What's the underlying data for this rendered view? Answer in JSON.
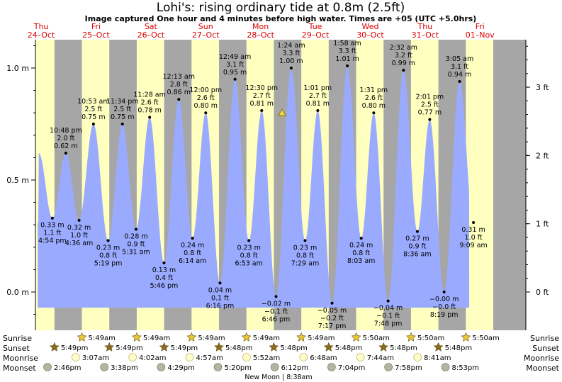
{
  "header": {
    "title": "Lohi's: rising  ordinary tide at 0.8m (2.5ft)",
    "subtitle": "Image captured One hour and 4 minutes before high water. Times are +05 (UTC +5.0hrs)"
  },
  "days": [
    {
      "name": "Thu",
      "date": "24–Oct"
    },
    {
      "name": "Fri",
      "date": "25–Oct"
    },
    {
      "name": "Sat",
      "date": "26–Oct"
    },
    {
      "name": "Sun",
      "date": "27–Oct"
    },
    {
      "name": "Mon",
      "date": "28–Oct"
    },
    {
      "name": "Tue",
      "date": "29–Oct"
    },
    {
      "name": "Wed",
      "date": "30–Oct"
    },
    {
      "name": "Thu",
      "date": "31–Oct"
    },
    {
      "name": "Fri",
      "date": "01–Nov"
    }
  ],
  "rows": {
    "sunrise": "Sunrise",
    "sunset": "Sunset",
    "moonrise": "Moonrise",
    "moonset": "Moonset"
  },
  "sun_moon": {
    "sunrise": [
      "5:49am",
      "5:49am",
      "5:49am",
      "5:49am",
      "5:49am",
      "5:50am",
      "5:50am",
      "5:50am"
    ],
    "sunset": [
      "5:49pm",
      "5:49pm",
      "5:49pm",
      "5:48pm",
      "5:48pm",
      "5:48pm",
      "5:48pm",
      "5:48pm"
    ],
    "moonrise": [
      "3:07am",
      "4:02am",
      "4:57am",
      "5:52am",
      "6:48am",
      "7:44am",
      "8:41am"
    ],
    "moonset": [
      "2:46pm",
      "3:38pm",
      "4:29pm",
      "5:20pm",
      "6:12pm",
      "7:04pm",
      "7:58pm",
      "8:53pm"
    ],
    "new_moon": "New Moon | 8:38am"
  },
  "colors": {
    "night": "#a6a6a6",
    "day": "#ffffc0",
    "tide": "#9aaaff",
    "day_label": "#e00000",
    "sun_icon": "#e8c832",
    "sunset_icon": "#8a6a20",
    "moonrise_icon": "#fffcc8",
    "moonset_icon": "#b4b4a0"
  },
  "chart_data": {
    "type": "area",
    "title": "Lohi's: rising  ordinary tide at 0.8m (2.5ft)",
    "ylabel_left": "m",
    "ylabel_right": "ft",
    "left_ticks": [
      "0.0 m",
      "0.5 m",
      "1.0 m"
    ],
    "right_ticks": [
      "0 ft",
      "1 ft",
      "2 ft",
      "3 ft"
    ],
    "ylim_m": [
      -0.15,
      1.18
    ],
    "current_level": "0.8 m",
    "series": [
      {
        "points": [
          {
            "day": 0,
            "time": "4:54 pm",
            "m": "0.33 m",
            "ft": "1.1 ft",
            "type": "low"
          },
          {
            "day": 0,
            "time": "10:48 pm",
            "m": "0.62 m",
            "ft": "2.0 ft",
            "type": "high"
          },
          {
            "day": 1,
            "time": "4:36 am",
            "m": "0.32 m",
            "ft": "1.0 ft",
            "type": "low"
          },
          {
            "day": 1,
            "time": "10:53 am",
            "m": "0.75 m",
            "ft": "2.5 ft",
            "type": "high"
          },
          {
            "day": 1,
            "time": "5:19 pm",
            "m": "0.23 m",
            "ft": "0.8 ft",
            "type": "low"
          },
          {
            "day": 1,
            "time": "11:34 pm",
            "m": "0.75 m",
            "ft": "2.5 ft",
            "type": "high"
          },
          {
            "day": 2,
            "time": "5:31 am",
            "m": "0.28 m",
            "ft": "0.9 ft",
            "type": "low"
          },
          {
            "day": 2,
            "time": "11:28 am",
            "m": "0.78 m",
            "ft": "2.6 ft",
            "type": "high"
          },
          {
            "day": 2,
            "time": "5:46 pm",
            "m": "0.13 m",
            "ft": "0.4 ft",
            "type": "low"
          },
          {
            "day": 3,
            "time": "12:13 am",
            "m": "0.86 m",
            "ft": "2.8 ft",
            "type": "high"
          },
          {
            "day": 3,
            "time": "6:14 am",
            "m": "0.24 m",
            "ft": "0.8 ft",
            "type": "low"
          },
          {
            "day": 3,
            "time": "12:00 pm",
            "m": "0.80 m",
            "ft": "2.6 ft",
            "type": "high"
          },
          {
            "day": 3,
            "time": "6:16 pm",
            "m": "0.04 m",
            "ft": "0.1 ft",
            "type": "low"
          },
          {
            "day": 4,
            "time": "12:49 am",
            "m": "0.95 m",
            "ft": "3.1 ft",
            "type": "high"
          },
          {
            "day": 4,
            "time": "6:53 am",
            "m": "0.23 m",
            "ft": "0.8 ft",
            "type": "low"
          },
          {
            "day": 4,
            "time": "12:30 pm",
            "m": "0.81 m",
            "ft": "2.7 ft",
            "type": "high"
          },
          {
            "day": 4,
            "time": "6:46 pm",
            "m": "−0.02 m",
            "ft": "−0.1 ft",
            "type": "low"
          },
          {
            "day": 5,
            "time": "1:24 am",
            "m": "1.00 m",
            "ft": "3.3 ft",
            "type": "high"
          },
          {
            "day": 5,
            "time": "7:29 am",
            "m": "0.23 m",
            "ft": "0.8 ft",
            "type": "low"
          },
          {
            "day": 5,
            "time": "1:01 pm",
            "m": "0.81 m",
            "ft": "2.7 ft",
            "type": "high"
          },
          {
            "day": 5,
            "time": "7:17 pm",
            "m": "−0.05 m",
            "ft": "−0.2 ft",
            "type": "low"
          },
          {
            "day": 6,
            "time": "1:58 am",
            "m": "1.01 m",
            "ft": "3.3 ft",
            "type": "high"
          },
          {
            "day": 6,
            "time": "8:03 am",
            "m": "0.24 m",
            "ft": "0.8 ft",
            "type": "low"
          },
          {
            "day": 6,
            "time": "1:31 pm",
            "m": "0.80 m",
            "ft": "2.6 ft",
            "type": "high"
          },
          {
            "day": 6,
            "time": "7:48 pm",
            "m": "−0.04 m",
            "ft": "−0.1 ft",
            "type": "low"
          },
          {
            "day": 7,
            "time": "2:32 am",
            "m": "0.99 m",
            "ft": "3.2 ft",
            "type": "high"
          },
          {
            "day": 7,
            "time": "8:36 am",
            "m": "0.27 m",
            "ft": "0.9 ft",
            "type": "low"
          },
          {
            "day": 7,
            "time": "2:01 pm",
            "m": "0.77 m",
            "ft": "2.5 ft",
            "type": "high"
          },
          {
            "day": 7,
            "time": "8:19 pm",
            "m": "−0.00 m",
            "ft": "−0.0 ft",
            "type": "low"
          },
          {
            "day": 8,
            "time": "3:05 am",
            "m": "0.94 m",
            "ft": "3.1 ft",
            "type": "high"
          },
          {
            "day": 8,
            "time": "9:09 am",
            "m": "0.31 m",
            "ft": "1.0 ft",
            "type": "low"
          }
        ]
      }
    ]
  }
}
